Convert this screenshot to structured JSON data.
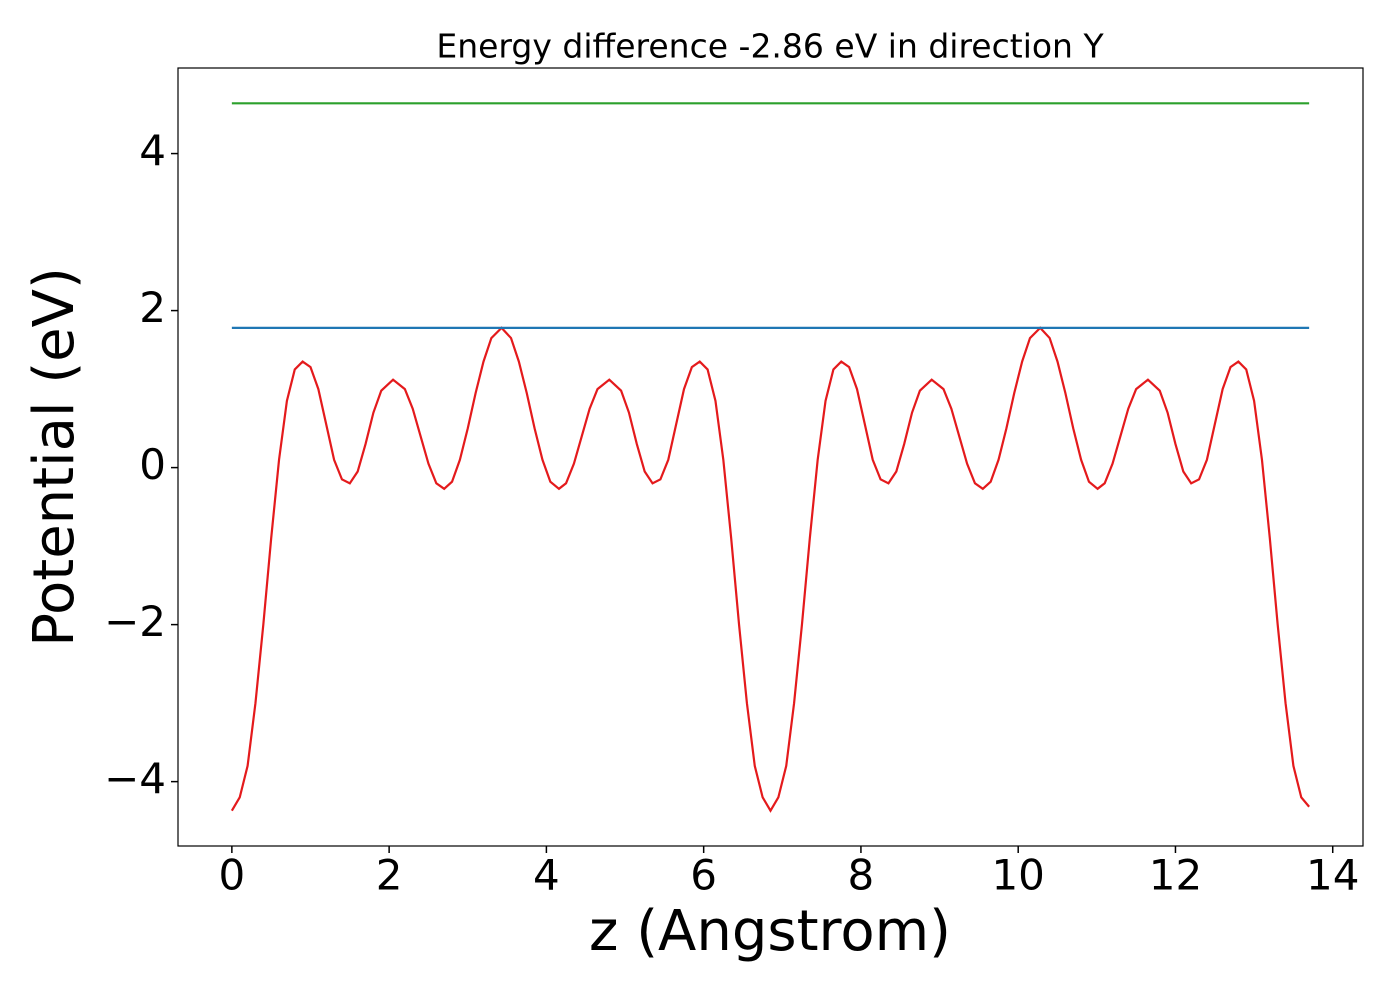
{
  "chart_data": {
    "type": "line",
    "title": "Energy difference -2.86 eV in direction Y",
    "xlabel": "z (Angstrom)",
    "ylabel": "Potential (eV)",
    "xlim": [
      -0.685,
      14.385
    ],
    "ylim": [
      -4.82,
      5.09
    ],
    "xticks": [
      0,
      2,
      4,
      6,
      8,
      10,
      12,
      14
    ],
    "yticks": [
      {
        "value": -4,
        "label": "−4"
      },
      {
        "value": -2,
        "label": "−2"
      },
      0,
      2,
      4
    ],
    "series": [
      {
        "color": "#e41a1c",
        "x": [
          0,
          0.1,
          0.2,
          0.3,
          0.4,
          0.5,
          0.6,
          0.7,
          0.8,
          0.9,
          1.0,
          1.1,
          1.2,
          1.3,
          1.4,
          1.5,
          1.6,
          1.7,
          1.8,
          1.9,
          2.05,
          2.2,
          2.3,
          2.4,
          2.5,
          2.6,
          2.7,
          2.8,
          2.9,
          3.0,
          3.1,
          3.2,
          3.3,
          3.43,
          3.55,
          3.65,
          3.75,
          3.85,
          3.95,
          4.05,
          4.16,
          4.25,
          4.35,
          4.45,
          4.55,
          4.65,
          4.8,
          4.95,
          5.05,
          5.15,
          5.25,
          5.35,
          5.45,
          5.55,
          5.65,
          5.75,
          5.85,
          5.95,
          6.05,
          6.15,
          6.25,
          6.35,
          6.45,
          6.55,
          6.65,
          6.75,
          6.85,
          6.95,
          7.05,
          7.15,
          7.25,
          7.35,
          7.45,
          7.55,
          7.65,
          7.75,
          7.85,
          7.95,
          8.05,
          8.15,
          8.25,
          8.35,
          8.45,
          8.55,
          8.65,
          8.75,
          8.9,
          9.05,
          9.15,
          9.25,
          9.35,
          9.45,
          9.55,
          9.65,
          9.75,
          9.85,
          9.95,
          10.05,
          10.15,
          10.28,
          10.4,
          10.5,
          10.6,
          10.7,
          10.8,
          10.9,
          11.01,
          11.1,
          11.2,
          11.3,
          11.4,
          11.5,
          11.65,
          11.8,
          11.9,
          12.0,
          12.1,
          12.2,
          12.3,
          12.4,
          12.5,
          12.6,
          12.7,
          12.8,
          12.9,
          13.0,
          13.1,
          13.2,
          13.3,
          13.4,
          13.5,
          13.6,
          13.7
        ],
        "values": [
          -4.37,
          -4.2,
          -3.8,
          -3.0,
          -2.0,
          -0.9,
          0.1,
          0.85,
          1.25,
          1.35,
          1.28,
          1.0,
          0.55,
          0.1,
          -0.15,
          -0.2,
          -0.05,
          0.3,
          0.7,
          0.98,
          1.12,
          1.0,
          0.75,
          0.4,
          0.05,
          -0.2,
          -0.27,
          -0.18,
          0.1,
          0.5,
          0.95,
          1.35,
          1.65,
          1.78,
          1.65,
          1.35,
          0.95,
          0.5,
          0.1,
          -0.18,
          -0.27,
          -0.2,
          0.05,
          0.4,
          0.75,
          1.0,
          1.12,
          0.98,
          0.7,
          0.3,
          -0.05,
          -0.2,
          -0.15,
          0.1,
          0.55,
          1.0,
          1.28,
          1.35,
          1.25,
          0.85,
          0.1,
          -0.9,
          -2.0,
          -3.0,
          -3.8,
          -4.2,
          -4.37,
          -4.2,
          -3.8,
          -3.0,
          -2.0,
          -0.9,
          0.1,
          0.85,
          1.25,
          1.35,
          1.28,
          1.0,
          0.55,
          0.1,
          -0.15,
          -0.2,
          -0.05,
          0.3,
          0.7,
          0.98,
          1.12,
          1.0,
          0.75,
          0.4,
          0.05,
          -0.2,
          -0.27,
          -0.18,
          0.1,
          0.5,
          0.95,
          1.35,
          1.65,
          1.78,
          1.65,
          1.35,
          0.95,
          0.5,
          0.1,
          -0.18,
          -0.27,
          -0.2,
          0.05,
          0.4,
          0.75,
          1.0,
          1.12,
          0.98,
          0.7,
          0.3,
          -0.05,
          -0.2,
          -0.15,
          0.1,
          0.55,
          1.0,
          1.28,
          1.35,
          1.25,
          0.85,
          0.1,
          -0.9,
          -2.0,
          -3.0,
          -3.8,
          -4.2,
          -4.32
        ]
      },
      {
        "color": "#1f77b4",
        "x": [
          0,
          13.7
        ],
        "values": [
          1.78,
          1.78
        ]
      },
      {
        "color": "#2ca02c",
        "x": [
          0,
          13.7
        ],
        "values": [
          4.64,
          4.64
        ]
      }
    ]
  }
}
